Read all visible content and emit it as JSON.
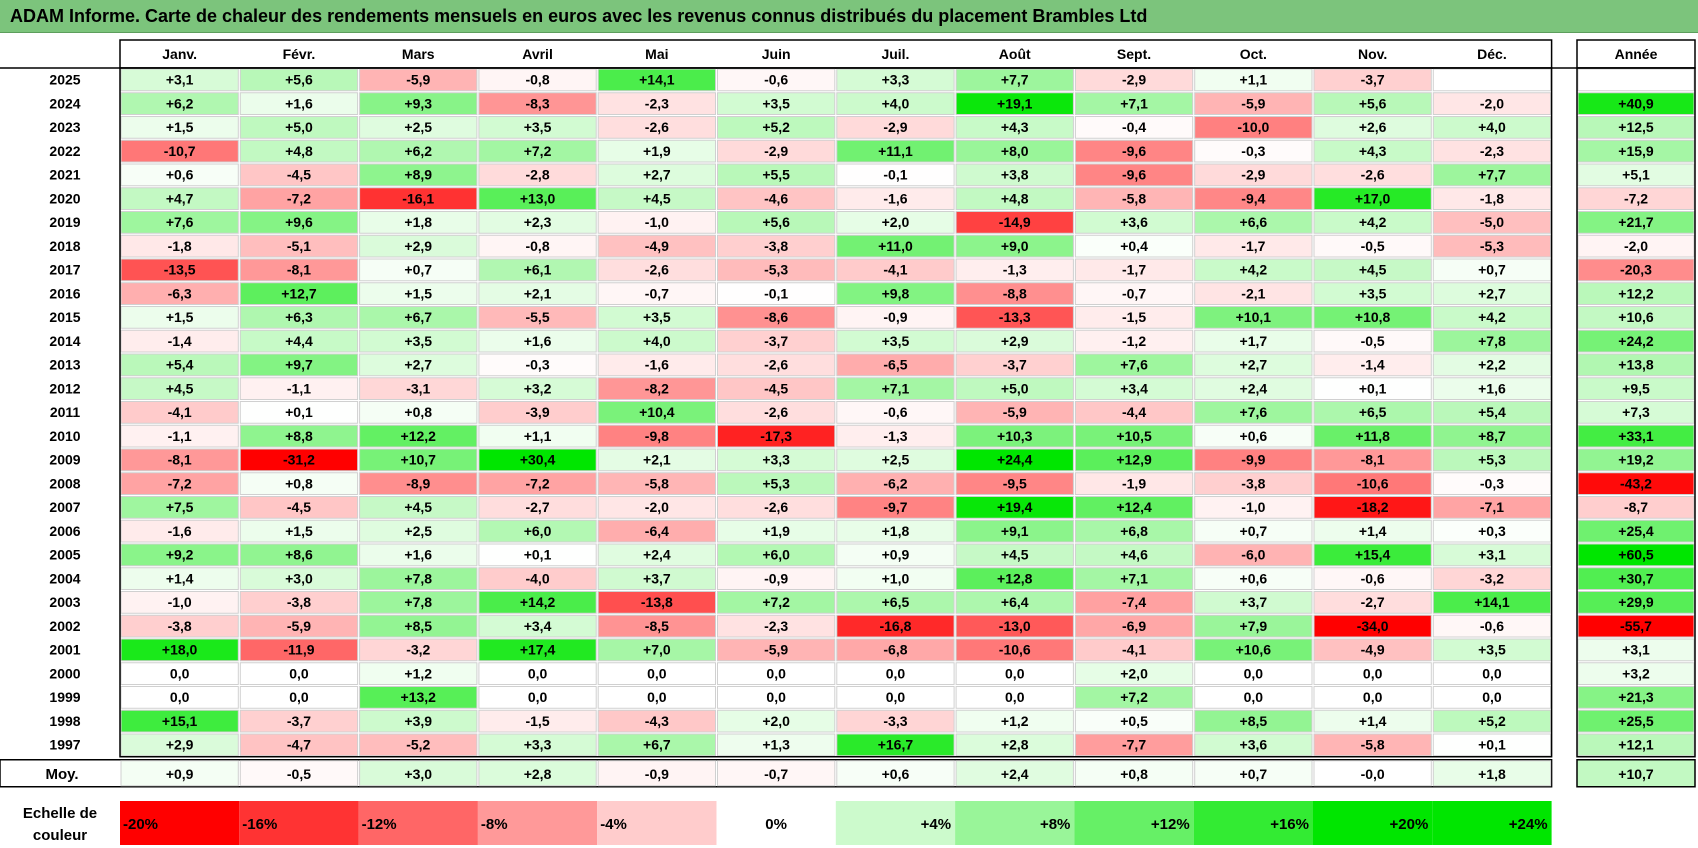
{
  "title": "ADAM Informe. Carte de chaleur des rendements mensuels en euros avec les revenus connus distribués du placement Brambles Ltd",
  "chart_data": {
    "type": "heatmap",
    "months": [
      "Janv.",
      "Févr.",
      "Mars",
      "Avril",
      "Mai",
      "Juin",
      "Juil.",
      "Août",
      "Sept.",
      "Oct.",
      "Nov.",
      "Déc."
    ],
    "year_header": "Année",
    "rows": [
      {
        "year": "2025",
        "values": [
          "+3,1",
          "+5,6",
          "-5,9",
          "-0,8",
          "+14,1",
          "-0,6",
          "+3,3",
          "+7,7",
          "-2,9",
          "+1,1",
          "-3,7",
          ""
        ],
        "annual": ""
      },
      {
        "year": "2024",
        "values": [
          "+6,2",
          "+1,6",
          "+9,3",
          "-8,3",
          "-2,3",
          "+3,5",
          "+4,0",
          "+19,1",
          "+7,1",
          "-5,9",
          "+5,6",
          "-2,0"
        ],
        "annual": "+40,9"
      },
      {
        "year": "2023",
        "values": [
          "+1,5",
          "+5,0",
          "+2,5",
          "+3,5",
          "-2,6",
          "+5,2",
          "-2,9",
          "+4,3",
          "-0,4",
          "-10,0",
          "+2,6",
          "+4,0"
        ],
        "annual": "+12,5"
      },
      {
        "year": "2022",
        "values": [
          "-10,7",
          "+4,8",
          "+6,2",
          "+7,2",
          "+1,9",
          "-2,9",
          "+11,1",
          "+8,0",
          "-9,6",
          "-0,3",
          "+4,3",
          "-2,3"
        ],
        "annual": "+15,9"
      },
      {
        "year": "2021",
        "values": [
          "+0,6",
          "-4,5",
          "+8,9",
          "-2,8",
          "+2,7",
          "+5,5",
          "-0,1",
          "+3,8",
          "-9,6",
          "-2,9",
          "-2,6",
          "+7,7"
        ],
        "annual": "+5,1"
      },
      {
        "year": "2020",
        "values": [
          "+4,7",
          "-7,2",
          "-16,1",
          "+13,0",
          "+4,5",
          "-4,6",
          "-1,6",
          "+4,8",
          "-5,8",
          "-9,4",
          "+17,0",
          "-1,8"
        ],
        "annual": "-7,2"
      },
      {
        "year": "2019",
        "values": [
          "+7,6",
          "+9,6",
          "+1,8",
          "+2,3",
          "-1,0",
          "+5,6",
          "+2,0",
          "-14,9",
          "+3,6",
          "+6,6",
          "+4,2",
          "-5,0"
        ],
        "annual": "+21,7"
      },
      {
        "year": "2018",
        "values": [
          "-1,8",
          "-5,1",
          "+2,9",
          "-0,8",
          "-4,9",
          "-3,8",
          "+11,0",
          "+9,0",
          "+0,4",
          "-1,7",
          "-0,5",
          "-5,3"
        ],
        "annual": "-2,0"
      },
      {
        "year": "2017",
        "values": [
          "-13,5",
          "-8,1",
          "+0,7",
          "+6,1",
          "-2,6",
          "-5,3",
          "-4,1",
          "-1,3",
          "-1,7",
          "+4,2",
          "+4,5",
          "+0,7"
        ],
        "annual": "-20,3"
      },
      {
        "year": "2016",
        "values": [
          "-6,3",
          "+12,7",
          "+1,5",
          "+2,1",
          "-0,7",
          "-0,1",
          "+9,8",
          "-8,8",
          "-0,7",
          "-2,1",
          "+3,5",
          "+2,7"
        ],
        "annual": "+12,2"
      },
      {
        "year": "2015",
        "values": [
          "+1,5",
          "+6,3",
          "+6,7",
          "-5,5",
          "+3,5",
          "-8,6",
          "-0,9",
          "-13,3",
          "-1,5",
          "+10,1",
          "+10,8",
          "+4,2"
        ],
        "annual": "+10,6"
      },
      {
        "year": "2014",
        "values": [
          "-1,4",
          "+4,4",
          "+3,5",
          "+1,6",
          "+4,0",
          "-3,7",
          "+3,5",
          "+2,9",
          "-1,2",
          "+1,7",
          "-0,5",
          "+7,8"
        ],
        "annual": "+24,2"
      },
      {
        "year": "2013",
        "values": [
          "+5,4",
          "+9,7",
          "+2,7",
          "-0,3",
          "-1,6",
          "-2,6",
          "-6,5",
          "-3,7",
          "+7,6",
          "+2,7",
          "-1,4",
          "+2,2"
        ],
        "annual": "+13,8"
      },
      {
        "year": "2012",
        "values": [
          "+4,5",
          "-1,1",
          "-3,1",
          "+3,2",
          "-8,2",
          "-4,5",
          "+7,1",
          "+5,0",
          "+3,4",
          "+2,4",
          "+0,1",
          "+1,6"
        ],
        "annual": "+9,5"
      },
      {
        "year": "2011",
        "values": [
          "-4,1",
          "+0,1",
          "+0,8",
          "-3,9",
          "+10,4",
          "-2,6",
          "-0,6",
          "-5,9",
          "-4,4",
          "+7,6",
          "+6,5",
          "+5,4"
        ],
        "annual": "+7,3"
      },
      {
        "year": "2010",
        "values": [
          "-1,1",
          "+8,8",
          "+12,2",
          "+1,1",
          "-9,8",
          "-17,3",
          "-1,3",
          "+10,3",
          "+10,5",
          "+0,6",
          "+11,8",
          "+8,7"
        ],
        "annual": "+33,1"
      },
      {
        "year": "2009",
        "values": [
          "-8,1",
          "-31,2",
          "+10,7",
          "+30,4",
          "+2,1",
          "+3,3",
          "+2,5",
          "+24,4",
          "+12,9",
          "-9,9",
          "-8,1",
          "+5,3"
        ],
        "annual": "+19,2"
      },
      {
        "year": "2008",
        "values": [
          "-7,2",
          "+0,8",
          "-8,9",
          "-7,2",
          "-5,8",
          "+5,3",
          "-6,2",
          "-9,5",
          "-1,9",
          "-3,8",
          "-10,6",
          "-0,3"
        ],
        "annual": "-43,2"
      },
      {
        "year": "2007",
        "values": [
          "+7,5",
          "-4,5",
          "+4,5",
          "-2,7",
          "-2,0",
          "-2,6",
          "-9,7",
          "+19,4",
          "+12,4",
          "-1,0",
          "-18,2",
          "-7,1"
        ],
        "annual": "-8,7"
      },
      {
        "year": "2006",
        "values": [
          "-1,6",
          "+1,5",
          "+2,5",
          "+6,0",
          "-6,4",
          "+1,9",
          "+1,8",
          "+9,1",
          "+6,8",
          "+0,7",
          "+1,4",
          "+0,3"
        ],
        "annual": "+25,4"
      },
      {
        "year": "2005",
        "values": [
          "+9,2",
          "+8,6",
          "+1,6",
          "+0,1",
          "+2,4",
          "+6,0",
          "+0,9",
          "+4,5",
          "+4,6",
          "-6,0",
          "+15,4",
          "+3,1"
        ],
        "annual": "+60,5"
      },
      {
        "year": "2004",
        "values": [
          "+1,4",
          "+3,0",
          "+7,8",
          "-4,0",
          "+3,7",
          "-0,9",
          "+1,0",
          "+12,8",
          "+7,1",
          "+0,6",
          "-0,6",
          "-3,2"
        ],
        "annual": "+30,7"
      },
      {
        "year": "2003",
        "values": [
          "-1,0",
          "-3,8",
          "+7,8",
          "+14,2",
          "-13,8",
          "+7,2",
          "+6,5",
          "+6,4",
          "-7,4",
          "+3,7",
          "-2,7",
          "+14,1"
        ],
        "annual": "+29,9"
      },
      {
        "year": "2002",
        "values": [
          "-3,8",
          "-5,9",
          "+8,5",
          "+3,4",
          "-8,5",
          "-2,3",
          "-16,8",
          "-13,0",
          "-6,9",
          "+7,9",
          "-34,0",
          "-0,6"
        ],
        "annual": "-55,7"
      },
      {
        "year": "2001",
        "values": [
          "+18,0",
          "-11,9",
          "-3,2",
          "+17,4",
          "+7,0",
          "-5,9",
          "-6,8",
          "-10,6",
          "-4,1",
          "+10,6",
          "-4,9",
          "+3,5"
        ],
        "annual": "+3,1"
      },
      {
        "year": "2000",
        "values": [
          "0,0",
          "0,0",
          "+1,2",
          "0,0",
          "0,0",
          "0,0",
          "0,0",
          "0,0",
          "+2,0",
          "0,0",
          "0,0",
          "0,0"
        ],
        "annual": "+3,2"
      },
      {
        "year": "1999",
        "values": [
          "0,0",
          "0,0",
          "+13,2",
          "0,0",
          "0,0",
          "0,0",
          "0,0",
          "0,0",
          "+7,2",
          "0,0",
          "0,0",
          "0,0"
        ],
        "annual": "+21,3"
      },
      {
        "year": "1998",
        "values": [
          "+15,1",
          "-3,7",
          "+3,9",
          "-1,5",
          "-4,3",
          "+2,0",
          "-3,3",
          "+1,2",
          "+0,5",
          "+8,5",
          "+1,4",
          "+5,2"
        ],
        "annual": "+25,5"
      },
      {
        "year": "1997",
        "values": [
          "+2,9",
          "-4,7",
          "-5,2",
          "+3,3",
          "+6,7",
          "+1,3",
          "+16,7",
          "+2,8",
          "-7,7",
          "+3,6",
          "-5,8",
          "+0,1"
        ],
        "annual": "+12,1"
      }
    ],
    "average": {
      "label": "Moy.",
      "values": [
        "+0,9",
        "-0,5",
        "+3,0",
        "+2,8",
        "-0,9",
        "-0,7",
        "+0,6",
        "+2,4",
        "+0,8",
        "+0,7",
        "-0,0",
        "+1,8"
      ],
      "annual": "+10,7"
    },
    "scale": {
      "label_line1": "Echelle de",
      "label_line2": "couleur",
      "steps": [
        {
          "label": "-20%",
          "value": -20
        },
        {
          "label": "-16%",
          "value": -16
        },
        {
          "label": "-12%",
          "value": -12
        },
        {
          "label": "-8%",
          "value": -8
        },
        {
          "label": "-4%",
          "value": -4
        },
        {
          "label": "0%",
          "value": 0
        },
        {
          "label": "+4%",
          "value": 4
        },
        {
          "label": "+8%",
          "value": 8
        },
        {
          "label": "+12%",
          "value": 12
        },
        {
          "label": "+16%",
          "value": 16
        },
        {
          "label": "+20%",
          "value": 20
        },
        {
          "label": "+24%",
          "value": 24
        }
      ]
    },
    "colors": {
      "negative_max": "#ff0000",
      "neutral": "#ffffff",
      "positive_max": "#00e600",
      "title_bg": "#7cc47c",
      "grid": "#c0c0c0"
    }
  }
}
